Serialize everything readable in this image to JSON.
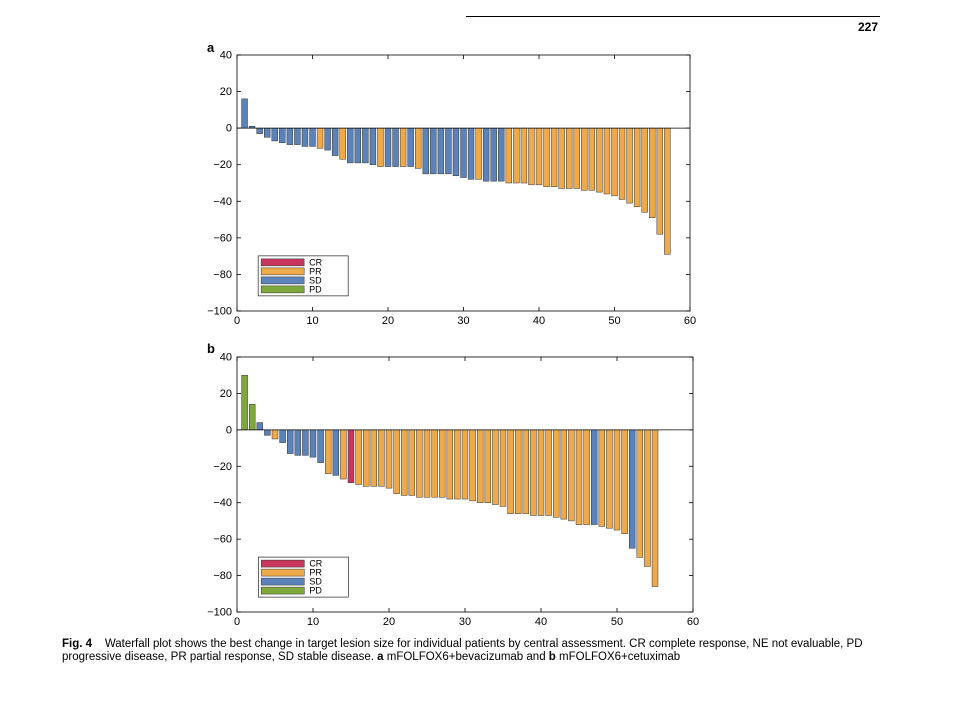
{
  "page": {
    "number": "227"
  },
  "caption": {
    "label": "Fig. 4",
    "text_main": "Waterfall plot shows the best change in target lesion size for individual patients by central assessment. CR complete response, NE not evaluable, PD progressive disease, PR partial response, SD stable disease.",
    "panel_a_letter": "a",
    "panel_a_text": "mFOLFOX6+bevacizumab and",
    "panel_b_letter": "b",
    "panel_b_text": "mFOLFOX6+cetuximab"
  },
  "colors": {
    "CR": "#c8365e",
    "PR": "#eeaa4a",
    "SD": "#5b83b9",
    "PD": "#7fa83c"
  },
  "chart_data": [
    {
      "type": "bar",
      "panel": "a",
      "xlim": [
        0,
        60
      ],
      "ylim": [
        -100,
        40
      ],
      "xticks": [
        0,
        10,
        20,
        30,
        40,
        50,
        60
      ],
      "yticks": [
        -100,
        -80,
        -60,
        -40,
        -20,
        0,
        20,
        40
      ],
      "legend": [
        "CR",
        "PR",
        "SD",
        "PD"
      ],
      "legend_position": "bottom-left",
      "grid": false,
      "bars": [
        {
          "x": 1,
          "value": 16,
          "status": "SD"
        },
        {
          "x": 2,
          "value": 1,
          "status": "SD"
        },
        {
          "x": 3,
          "value": -3,
          "status": "SD"
        },
        {
          "x": 4,
          "value": -5,
          "status": "SD"
        },
        {
          "x": 5,
          "value": -7,
          "status": "SD"
        },
        {
          "x": 6,
          "value": -8,
          "status": "SD"
        },
        {
          "x": 7,
          "value": -9,
          "status": "SD"
        },
        {
          "x": 8,
          "value": -9,
          "status": "SD"
        },
        {
          "x": 9,
          "value": -10,
          "status": "SD"
        },
        {
          "x": 10,
          "value": -10,
          "status": "SD"
        },
        {
          "x": 11,
          "value": -11,
          "status": "PR"
        },
        {
          "x": 12,
          "value": -12,
          "status": "SD"
        },
        {
          "x": 13,
          "value": -15,
          "status": "SD"
        },
        {
          "x": 14,
          "value": -17,
          "status": "PR"
        },
        {
          "x": 15,
          "value": -19,
          "status": "SD"
        },
        {
          "x": 16,
          "value": -19,
          "status": "SD"
        },
        {
          "x": 17,
          "value": -19,
          "status": "SD"
        },
        {
          "x": 18,
          "value": -20,
          "status": "SD"
        },
        {
          "x": 19,
          "value": -21,
          "status": "PR"
        },
        {
          "x": 20,
          "value": -21,
          "status": "SD"
        },
        {
          "x": 21,
          "value": -21,
          "status": "SD"
        },
        {
          "x": 22,
          "value": -21,
          "status": "PR"
        },
        {
          "x": 23,
          "value": -21,
          "status": "SD"
        },
        {
          "x": 24,
          "value": -22,
          "status": "PR"
        },
        {
          "x": 25,
          "value": -25,
          "status": "SD"
        },
        {
          "x": 26,
          "value": -25,
          "status": "SD"
        },
        {
          "x": 27,
          "value": -25,
          "status": "SD"
        },
        {
          "x": 28,
          "value": -25,
          "status": "SD"
        },
        {
          "x": 29,
          "value": -26,
          "status": "SD"
        },
        {
          "x": 30,
          "value": -27,
          "status": "SD"
        },
        {
          "x": 31,
          "value": -28,
          "status": "SD"
        },
        {
          "x": 32,
          "value": -28,
          "status": "PR"
        },
        {
          "x": 33,
          "value": -29,
          "status": "SD"
        },
        {
          "x": 34,
          "value": -29,
          "status": "SD"
        },
        {
          "x": 35,
          "value": -29,
          "status": "SD"
        },
        {
          "x": 36,
          "value": -30,
          "status": "PR"
        },
        {
          "x": 37,
          "value": -30,
          "status": "PR"
        },
        {
          "x": 38,
          "value": -30,
          "status": "PR"
        },
        {
          "x": 39,
          "value": -31,
          "status": "PR"
        },
        {
          "x": 40,
          "value": -31,
          "status": "PR"
        },
        {
          "x": 41,
          "value": -32,
          "status": "PR"
        },
        {
          "x": 42,
          "value": -32,
          "status": "PR"
        },
        {
          "x": 43,
          "value": -33,
          "status": "PR"
        },
        {
          "x": 44,
          "value": -33,
          "status": "PR"
        },
        {
          "x": 45,
          "value": -33,
          "status": "PR"
        },
        {
          "x": 46,
          "value": -34,
          "status": "PR"
        },
        {
          "x": 47,
          "value": -34,
          "status": "PR"
        },
        {
          "x": 48,
          "value": -35,
          "status": "PR"
        },
        {
          "x": 49,
          "value": -36,
          "status": "PR"
        },
        {
          "x": 50,
          "value": -37,
          "status": "PR"
        },
        {
          "x": 51,
          "value": -39,
          "status": "PR"
        },
        {
          "x": 52,
          "value": -41,
          "status": "PR"
        },
        {
          "x": 53,
          "value": -43,
          "status": "PR"
        },
        {
          "x": 54,
          "value": -46,
          "status": "PR"
        },
        {
          "x": 55,
          "value": -49,
          "status": "PR"
        },
        {
          "x": 56,
          "value": -58,
          "status": "PR"
        },
        {
          "x": 57,
          "value": -69,
          "status": "PR"
        }
      ]
    },
    {
      "type": "bar",
      "panel": "b",
      "xlim": [
        0,
        60
      ],
      "ylim": [
        -100,
        40
      ],
      "xticks": [
        0,
        10,
        20,
        30,
        40,
        50,
        60
      ],
      "yticks": [
        -100,
        -80,
        -60,
        -40,
        -20,
        0,
        20,
        40
      ],
      "legend": [
        "CR",
        "PR",
        "SD",
        "PD"
      ],
      "legend_position": "bottom-left",
      "grid": false,
      "bars": [
        {
          "x": 1,
          "value": 30,
          "status": "PD"
        },
        {
          "x": 2,
          "value": 14,
          "status": "PD"
        },
        {
          "x": 3,
          "value": 4,
          "status": "SD"
        },
        {
          "x": 4,
          "value": -3,
          "status": "SD"
        },
        {
          "x": 5,
          "value": -5,
          "status": "PR"
        },
        {
          "x": 6,
          "value": -7,
          "status": "SD"
        },
        {
          "x": 7,
          "value": -13,
          "status": "SD"
        },
        {
          "x": 8,
          "value": -14,
          "status": "SD"
        },
        {
          "x": 9,
          "value": -14,
          "status": "SD"
        },
        {
          "x": 10,
          "value": -15,
          "status": "SD"
        },
        {
          "x": 11,
          "value": -18,
          "status": "SD"
        },
        {
          "x": 12,
          "value": -24,
          "status": "PR"
        },
        {
          "x": 13,
          "value": -25,
          "status": "SD"
        },
        {
          "x": 14,
          "value": -27,
          "status": "PR"
        },
        {
          "x": 15,
          "value": -29,
          "status": "CR"
        },
        {
          "x": 16,
          "value": -30,
          "status": "PR"
        },
        {
          "x": 17,
          "value": -31,
          "status": "PR"
        },
        {
          "x": 18,
          "value": -31,
          "status": "PR"
        },
        {
          "x": 19,
          "value": -31,
          "status": "PR"
        },
        {
          "x": 20,
          "value": -32,
          "status": "PR"
        },
        {
          "x": 21,
          "value": -35,
          "status": "PR"
        },
        {
          "x": 22,
          "value": -36,
          "status": "PR"
        },
        {
          "x": 23,
          "value": -36,
          "status": "PR"
        },
        {
          "x": 24,
          "value": -37,
          "status": "PR"
        },
        {
          "x": 25,
          "value": -37,
          "status": "PR"
        },
        {
          "x": 26,
          "value": -37,
          "status": "PR"
        },
        {
          "x": 27,
          "value": -37,
          "status": "PR"
        },
        {
          "x": 28,
          "value": -38,
          "status": "PR"
        },
        {
          "x": 29,
          "value": -38,
          "status": "PR"
        },
        {
          "x": 30,
          "value": -38,
          "status": "PR"
        },
        {
          "x": 31,
          "value": -39,
          "status": "PR"
        },
        {
          "x": 32,
          "value": -40,
          "status": "PR"
        },
        {
          "x": 33,
          "value": -40,
          "status": "PR"
        },
        {
          "x": 34,
          "value": -41,
          "status": "PR"
        },
        {
          "x": 35,
          "value": -42,
          "status": "PR"
        },
        {
          "x": 36,
          "value": -46,
          "status": "PR"
        },
        {
          "x": 37,
          "value": -46,
          "status": "PR"
        },
        {
          "x": 38,
          "value": -46,
          "status": "PR"
        },
        {
          "x": 39,
          "value": -47,
          "status": "PR"
        },
        {
          "x": 40,
          "value": -47,
          "status": "PR"
        },
        {
          "x": 41,
          "value": -47,
          "status": "PR"
        },
        {
          "x": 42,
          "value": -48,
          "status": "PR"
        },
        {
          "x": 43,
          "value": -49,
          "status": "PR"
        },
        {
          "x": 44,
          "value": -50,
          "status": "PR"
        },
        {
          "x": 45,
          "value": -52,
          "status": "PR"
        },
        {
          "x": 46,
          "value": -52,
          "status": "PR"
        },
        {
          "x": 47,
          "value": -52,
          "status": "SD"
        },
        {
          "x": 48,
          "value": -53,
          "status": "PR"
        },
        {
          "x": 49,
          "value": -54,
          "status": "PR"
        },
        {
          "x": 50,
          "value": -55,
          "status": "PR"
        },
        {
          "x": 51,
          "value": -57,
          "status": "PR"
        },
        {
          "x": 52,
          "value": -65,
          "status": "SD"
        },
        {
          "x": 53,
          "value": -70,
          "status": "PR"
        },
        {
          "x": 54,
          "value": -75,
          "status": "PR"
        },
        {
          "x": 55,
          "value": -86,
          "status": "PR"
        }
      ]
    }
  ]
}
